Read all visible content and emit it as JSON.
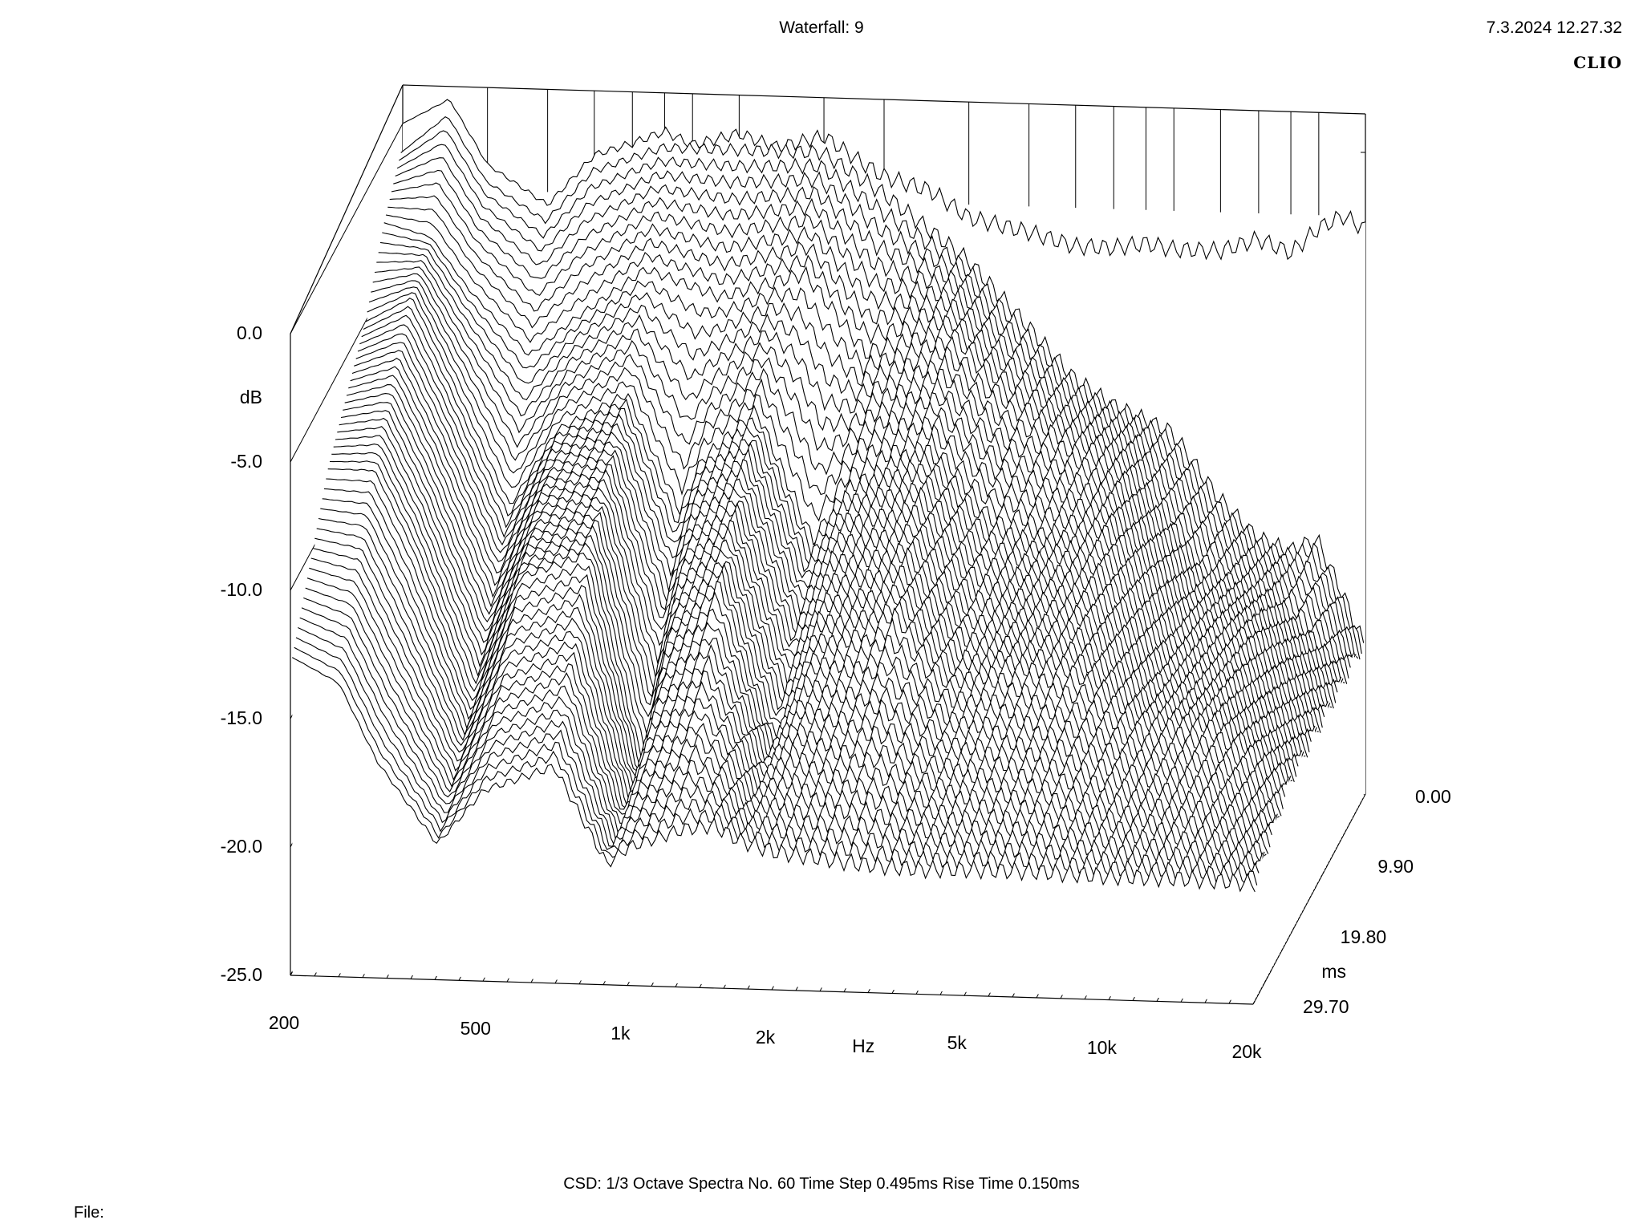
{
  "header": {
    "title": "Waterfall: 9",
    "timestamp": "7.3.2024 12.27.32",
    "brand": "CLIO"
  },
  "footer": {
    "csd_line": "CSD:   1/3 Octave   Spectra No. 60   Time Step 0.495ms   Rise Time 0.150ms",
    "file_label": "File:"
  },
  "chart_data": {
    "type": "waterfall",
    "title": "Waterfall: 9",
    "x_axis": {
      "label": "Hz",
      "scale": "log",
      "range": [
        200,
        20000
      ],
      "ticks": [
        {
          "value": 200,
          "label": "200"
        },
        {
          "value": 500,
          "label": "500"
        },
        {
          "value": 1000,
          "label": "1k"
        },
        {
          "value": 2000,
          "label": "2k"
        },
        {
          "value": 5000,
          "label": "5k"
        },
        {
          "value": 10000,
          "label": "10k"
        },
        {
          "value": 20000,
          "label": "20k"
        }
      ]
    },
    "y_axis": {
      "label": "dB",
      "range": [
        -25,
        0
      ],
      "ticks": [
        {
          "value": 0,
          "label": "0.0"
        },
        {
          "value": -5,
          "label": "-5.0"
        },
        {
          "value": -10,
          "label": "-10.0"
        },
        {
          "value": -15,
          "label": "-15.0"
        },
        {
          "value": -20,
          "label": "-20.0"
        },
        {
          "value": -25,
          "label": "-25.0"
        }
      ]
    },
    "z_axis": {
      "label": "ms",
      "range": [
        0,
        29.7
      ],
      "ticks": [
        {
          "value": 0,
          "label": "0.00"
        },
        {
          "value": 9.9,
          "label": "9.90"
        },
        {
          "value": 19.8,
          "label": "19.80"
        },
        {
          "value": 29.7,
          "label": "29.70"
        }
      ]
    },
    "spectra_count": 60,
    "time_step_ms": 0.495,
    "rise_time_ms": 0.15,
    "resolution": "1/3 Octave",
    "spectra": [
      {
        "time_ms": 0.0,
        "points": [
          [
            200,
            0.0
          ],
          [
            250,
            1.0
          ],
          [
            300,
            -1.5
          ],
          [
            400,
            -3.0
          ],
          [
            500,
            -1.0
          ],
          [
            600,
            -0.5
          ],
          [
            700,
            0.0
          ],
          [
            800,
            -0.5
          ],
          [
            1000,
            0.0
          ],
          [
            1200,
            -0.5
          ],
          [
            1500,
            0.0
          ],
          [
            1800,
            -1.0
          ],
          [
            2000,
            -1.5
          ],
          [
            2500,
            -2.0
          ],
          [
            3000,
            -3.0
          ],
          [
            4000,
            -3.5
          ],
          [
            5000,
            -4.0
          ],
          [
            6000,
            -4.0
          ],
          [
            7000,
            -3.8
          ],
          [
            8000,
            -4.0
          ],
          [
            10000,
            -4.0
          ],
          [
            12000,
            -3.5
          ],
          [
            14000,
            -4.0
          ],
          [
            16000,
            -3.0
          ],
          [
            18000,
            -2.5
          ],
          [
            20000,
            -3.0
          ]
        ]
      },
      {
        "time_ms": 0.495,
        "points": [
          [
            200,
            -1.0
          ],
          [
            250,
            0.5
          ],
          [
            300,
            -2.0
          ],
          [
            400,
            -3.5
          ],
          [
            500,
            -1.5
          ],
          [
            700,
            -0.5
          ],
          [
            1000,
            -0.5
          ],
          [
            1500,
            -0.5
          ],
          [
            2000,
            -2.0
          ],
          [
            3000,
            -4.5
          ],
          [
            4000,
            -7.0
          ],
          [
            5000,
            -9.0
          ],
          [
            6000,
            -10.0
          ],
          [
            8000,
            -11.0
          ],
          [
            10000,
            -13.5
          ],
          [
            12000,
            -15.0
          ],
          [
            14000,
            -15.5
          ],
          [
            16000,
            -15.0
          ],
          [
            18000,
            -17.0
          ],
          [
            20000,
            -19.0
          ]
        ]
      },
      {
        "time_ms": 4.95,
        "points": [
          [
            200,
            -2.5
          ],
          [
            250,
            -3.0
          ],
          [
            300,
            -5.0
          ],
          [
            400,
            -7.5
          ],
          [
            500,
            -6.0
          ],
          [
            700,
            -4.0
          ],
          [
            1000,
            -5.0
          ],
          [
            1500,
            -4.0
          ],
          [
            2000,
            -7.0
          ],
          [
            3000,
            -6.0
          ],
          [
            4000,
            -9.0
          ],
          [
            5000,
            -10.0
          ],
          [
            7000,
            -11.0
          ],
          [
            10000,
            -15.0
          ],
          [
            14000,
            -16.0
          ],
          [
            20000,
            -19.0
          ]
        ]
      },
      {
        "time_ms": 9.9,
        "points": [
          [
            200,
            -5.0
          ],
          [
            250,
            -4.0
          ],
          [
            300,
            -7.0
          ],
          [
            400,
            -12.0
          ],
          [
            500,
            -9.0
          ],
          [
            700,
            -7.5
          ],
          [
            900,
            -12.0
          ],
          [
            1000,
            -10.0
          ],
          [
            1300,
            -8.0
          ],
          [
            1700,
            -13.0
          ],
          [
            2000,
            -11.0
          ],
          [
            3000,
            -9.0
          ],
          [
            4000,
            -12.0
          ],
          [
            5000,
            -12.5
          ],
          [
            7000,
            -12.0
          ],
          [
            10000,
            -15.5
          ],
          [
            14000,
            -16.0
          ],
          [
            20000,
            -19.0
          ]
        ]
      },
      {
        "time_ms": 19.8,
        "points": [
          [
            200,
            -8.0
          ],
          [
            250,
            -8.0
          ],
          [
            300,
            -11.0
          ],
          [
            400,
            -17.0
          ],
          [
            500,
            -12.0
          ],
          [
            700,
            -11.0
          ],
          [
            900,
            -19.0
          ],
          [
            1000,
            -15.0
          ],
          [
            1300,
            -12.0
          ],
          [
            1700,
            -18.0
          ],
          [
            2000,
            -15.0
          ],
          [
            3000,
            -13.0
          ],
          [
            4000,
            -16.0
          ],
          [
            5000,
            -15.0
          ],
          [
            7000,
            -15.0
          ],
          [
            10000,
            -17.0
          ],
          [
            14000,
            -17.0
          ],
          [
            20000,
            -19.0
          ]
        ]
      },
      {
        "time_ms": 29.7,
        "points": [
          [
            200,
            -13.0
          ],
          [
            250,
            -14.0
          ],
          [
            300,
            -17.0
          ],
          [
            400,
            -20.0
          ],
          [
            500,
            -18.0
          ],
          [
            700,
            -17.0
          ],
          [
            900,
            -20.5
          ],
          [
            1000,
            -20.0
          ],
          [
            1500,
            -19.0
          ],
          [
            2000,
            -20.0
          ],
          [
            3000,
            -20.5
          ],
          [
            5000,
            -20.5
          ],
          [
            10000,
            -20.5
          ],
          [
            20000,
            -20.5
          ]
        ]
      }
    ]
  }
}
